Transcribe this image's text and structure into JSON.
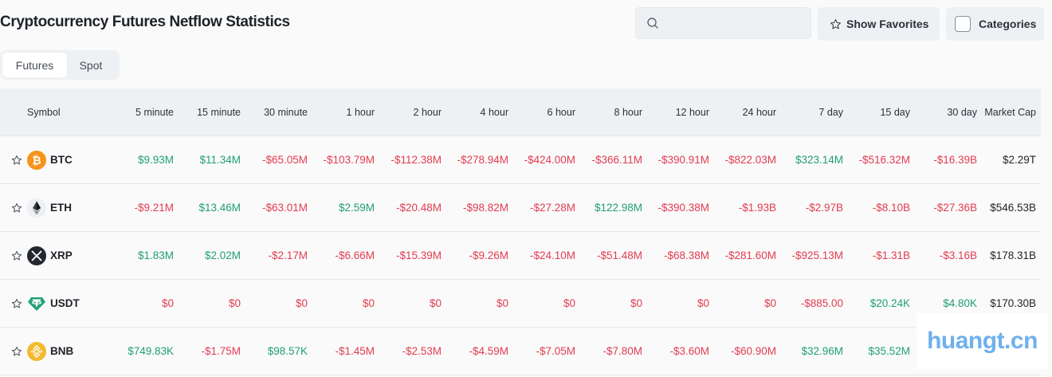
{
  "header": {
    "title": "Cryptocurrency Futures Netflow Statistics",
    "search": {
      "placeholder": "",
      "value": "",
      "icon": "search-icon"
    },
    "show_favorites_label": "Show Favorites",
    "categories_label": "Categories"
  },
  "tabs": [
    {
      "label": "Futures",
      "active": true
    },
    {
      "label": "Spot",
      "active": false
    }
  ],
  "colors": {
    "positive": "#1f9e78",
    "negative": "#e23c50",
    "header_bg": "#eef1f4",
    "page_bg": "#fafafa"
  },
  "table": {
    "columns": [
      "Symbol",
      "5 minute",
      "15 minute",
      "30 minute",
      "1 hour",
      "2 hour",
      "4 hour",
      "6 hour",
      "8 hour",
      "12 hour",
      "24 hour",
      "7 day",
      "15 day",
      "30 day",
      "Market Cap"
    ],
    "rows": [
      {
        "symbol": "BTC",
        "icon": "bitcoin-icon",
        "icon_color": "#f7931a",
        "values": [
          "$9.93M",
          "$11.34M",
          "-$65.05M",
          "-$103.79M",
          "-$112.38M",
          "-$278.94M",
          "-$424.00M",
          "-$366.11M",
          "-$390.91M",
          "-$822.03M",
          "$323.14M",
          "-$516.32M",
          "-$16.39B"
        ],
        "signs": [
          "pos",
          "pos",
          "neg",
          "neg",
          "neg",
          "neg",
          "neg",
          "neg",
          "neg",
          "neg",
          "pos",
          "neg",
          "neg"
        ],
        "market_cap": "$2.29T"
      },
      {
        "symbol": "ETH",
        "icon": "ethereum-icon",
        "icon_color": "#eceff3",
        "values": [
          "-$9.21M",
          "$13.46M",
          "-$63.01M",
          "$2.59M",
          "-$20.48M",
          "-$98.82M",
          "-$27.28M",
          "$122.98M",
          "-$390.38M",
          "-$1.93B",
          "-$2.97B",
          "-$8.10B",
          "-$27.36B"
        ],
        "signs": [
          "neg",
          "pos",
          "neg",
          "pos",
          "neg",
          "neg",
          "neg",
          "pos",
          "neg",
          "neg",
          "neg",
          "neg",
          "neg"
        ],
        "market_cap": "$546.53B"
      },
      {
        "symbol": "XRP",
        "icon": "xrp-icon",
        "icon_color": "#23292f",
        "values": [
          "$1.83M",
          "$2.02M",
          "-$2.17M",
          "-$6.66M",
          "-$15.39M",
          "-$9.26M",
          "-$24.10M",
          "-$51.48M",
          "-$68.38M",
          "-$281.60M",
          "-$925.13M",
          "-$1.31B",
          "-$3.16B"
        ],
        "signs": [
          "pos",
          "pos",
          "neg",
          "neg",
          "neg",
          "neg",
          "neg",
          "neg",
          "neg",
          "neg",
          "neg",
          "neg",
          "neg"
        ],
        "market_cap": "$178.31B"
      },
      {
        "symbol": "USDT",
        "icon": "tether-icon",
        "icon_color": "#26a17b",
        "values": [
          "$0",
          "$0",
          "$0",
          "$0",
          "$0",
          "$0",
          "$0",
          "$0",
          "$0",
          "$0",
          "-$885.00",
          "$20.24K",
          "$4.80K"
        ],
        "signs": [
          "neg",
          "neg",
          "neg",
          "neg",
          "neg",
          "neg",
          "neg",
          "neg",
          "neg",
          "neg",
          "neg",
          "pos",
          "pos"
        ],
        "market_cap": "$170.30B"
      },
      {
        "symbol": "BNB",
        "icon": "bnb-icon",
        "icon_color": "#f3ba2f",
        "values": [
          "$749.83K",
          "-$1.75M",
          "$98.57K",
          "-$1.45M",
          "-$2.53M",
          "-$4.59M",
          "-$7.05M",
          "-$7.80M",
          "-$3.60M",
          "-$60.90M",
          "$32.96M",
          "$35.52M",
          ""
        ],
        "signs": [
          "pos",
          "neg",
          "pos",
          "neg",
          "neg",
          "neg",
          "neg",
          "neg",
          "neg",
          "neg",
          "pos",
          "pos",
          "pos"
        ],
        "market_cap": ""
      }
    ]
  },
  "watermark": "huangt.cn"
}
